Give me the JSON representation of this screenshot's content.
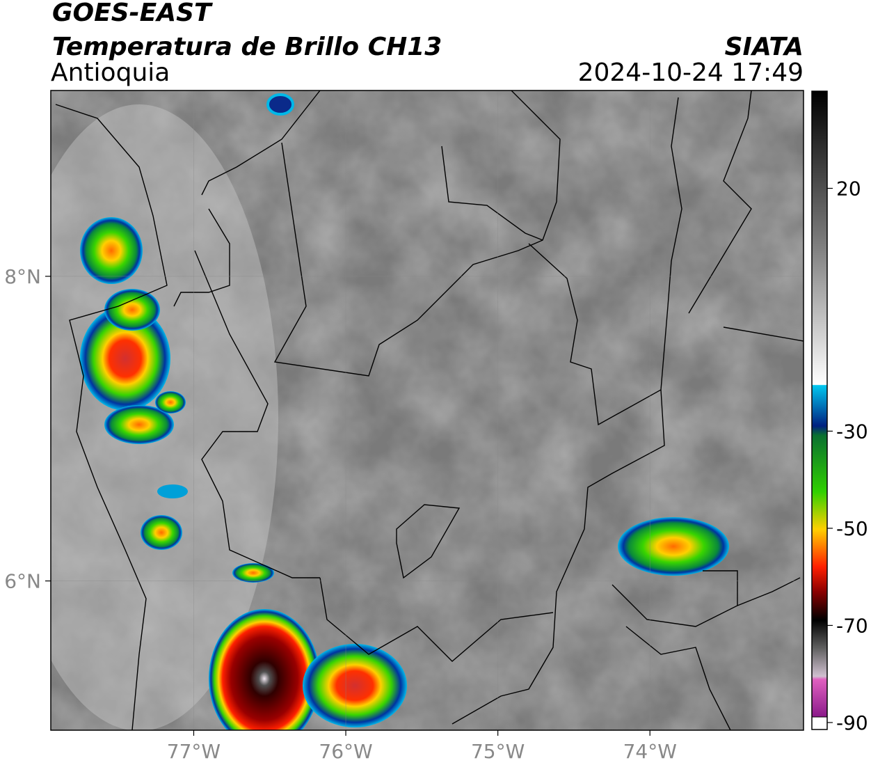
{
  "header": {
    "satellite": "GOES-EAST",
    "product": "Temperatura de Brillo CH13",
    "region": "Antioquia",
    "agency": "SIATA",
    "datetime": "2024-10-24 17:49"
  },
  "map": {
    "xlim": [
      -77.94,
      -72.99
    ],
    "ylim": [
      5.02,
      9.22
    ],
    "xticks": [
      {
        "value": -77,
        "label": "77°W"
      },
      {
        "value": -76,
        "label": "76°W"
      },
      {
        "value": -75,
        "label": "75°W"
      },
      {
        "value": -74,
        "label": "74°W"
      }
    ],
    "yticks": [
      {
        "value": 6,
        "label": "6°N"
      },
      {
        "value": 8,
        "label": "8°N"
      }
    ],
    "grid": true
  },
  "colorbar": {
    "lim": [
      -90,
      40
    ],
    "ticks": [
      -90,
      -70,
      -50,
      -30,
      20
    ]
  }
}
